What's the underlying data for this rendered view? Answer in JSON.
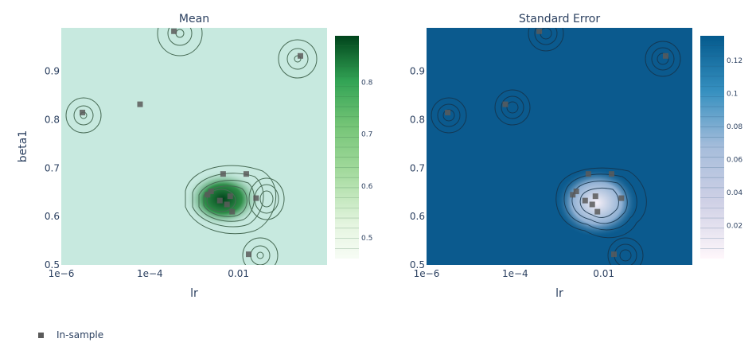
{
  "chart_data": [
    {
      "type": "heatmap",
      "title": "Mean",
      "xlabel": "lr",
      "ylabel": "beta1",
      "x_scale": "log",
      "xlim": [
        1e-06,
        1
      ],
      "ylim": [
        0.5,
        0.99
      ],
      "x_ticks": [
        "1e−6",
        "1e−4",
        "0.01"
      ],
      "y_ticks": [
        "0.5",
        "0.6",
        "0.7",
        "0.8",
        "0.9"
      ],
      "colorscale": "Greens",
      "colorbar_range": [
        0.46,
        0.89
      ],
      "colorbar_ticks": [
        "0.5",
        "0.6",
        "0.7",
        "0.8"
      ],
      "grid": false
    },
    {
      "type": "heatmap",
      "title": "Standard Error",
      "xlabel": "lr",
      "ylabel": "",
      "x_scale": "log",
      "xlim": [
        1e-06,
        1
      ],
      "ylim": [
        0.5,
        0.99
      ],
      "x_ticks": [
        "1e−6",
        "1e−4",
        "0.01"
      ],
      "y_ticks": [
        "0.5",
        "0.6",
        "0.7",
        "0.8",
        "0.9"
      ],
      "colorscale": "PuBu",
      "colorbar_range": [
        0,
        0.135
      ],
      "colorbar_ticks": [
        "0.02",
        "0.04",
        "0.06",
        "0.08",
        "0.1",
        "0.12"
      ],
      "grid": false
    }
  ],
  "samples": {
    "name": "In-sample",
    "points": [
      {
        "lr": 3e-06,
        "beta1": 0.815
      },
      {
        "lr": 6e-05,
        "beta1": 0.832
      },
      {
        "lr": 0.00035,
        "beta1": 0.983
      },
      {
        "lr": 0.25,
        "beta1": 0.932
      },
      {
        "lr": 0.002,
        "beta1": 0.645
      },
      {
        "lr": 0.0024,
        "beta1": 0.652
      },
      {
        "lr": 0.0045,
        "beta1": 0.688
      },
      {
        "lr": 0.0038,
        "beta1": 0.633
      },
      {
        "lr": 0.0055,
        "beta1": 0.625
      },
      {
        "lr": 0.0065,
        "beta1": 0.642
      },
      {
        "lr": 0.0072,
        "beta1": 0.61
      },
      {
        "lr": 0.015,
        "beta1": 0.688
      },
      {
        "lr": 0.025,
        "beta1": 0.638
      },
      {
        "lr": 0.017,
        "beta1": 0.522
      }
    ]
  },
  "legend": {
    "label": "In-sample",
    "marker_color": "#5b5b5b"
  }
}
